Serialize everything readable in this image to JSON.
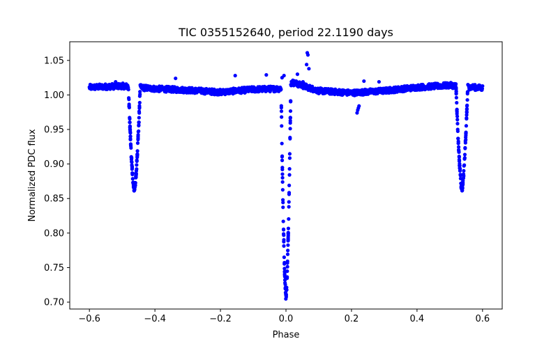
{
  "chart_data": {
    "type": "scatter",
    "title": "TIC 0355152640, period 22.1190 days",
    "xlabel": "Phase",
    "ylabel": "Normalized PDC flux",
    "xlim": [
      -0.66,
      0.66
    ],
    "ylim": [
      0.69,
      1.077
    ],
    "xticks": [
      -0.6,
      -0.4,
      -0.2,
      0.0,
      0.2,
      0.4,
      0.6
    ],
    "xtick_labels": [
      "−0.6",
      "−0.4",
      "−0.2",
      "0.0",
      "0.2",
      "0.4",
      "0.6"
    ],
    "yticks": [
      0.7,
      0.75,
      0.8,
      0.85,
      0.9,
      0.95,
      1.0,
      1.05
    ],
    "ytick_labels": [
      "0.70",
      "0.75",
      "0.80",
      "0.85",
      "0.90",
      "0.95",
      "1.00",
      "1.05"
    ],
    "marker_color": "#0000ff",
    "series": [
      {
        "name": "flux",
        "baseline": [
          [
            -0.6,
            1.011
          ],
          [
            -0.5,
            1.013
          ],
          [
            -0.4,
            1.009
          ],
          [
            -0.3,
            1.007
          ],
          [
            -0.2,
            1.004
          ],
          [
            -0.1,
            1.008
          ],
          [
            -0.02,
            1.009
          ],
          [
            0.02,
            1.018
          ],
          [
            0.1,
            1.006
          ],
          [
            0.2,
            1.003
          ],
          [
            0.3,
            1.006
          ],
          [
            0.4,
            1.011
          ],
          [
            0.5,
            1.014
          ],
          [
            0.6,
            1.01
          ]
        ],
        "eclipses": [
          {
            "center": -0.463,
            "half_width": 0.018,
            "depth": 0.148
          },
          {
            "center": 0.0,
            "half_width": 0.015,
            "depth": 0.305
          },
          {
            "center": 0.537,
            "half_width": 0.018,
            "depth": 0.148
          }
        ],
        "outliers": [
          {
            "x": -0.337,
            "y": 1.024
          },
          {
            "x": -0.155,
            "y": 1.028
          },
          {
            "x": -0.06,
            "y": 1.029
          },
          {
            "x": -0.012,
            "y": 1.025
          },
          {
            "x": -0.006,
            "y": 1.028
          },
          {
            "x": 0.035,
            "y": 1.03
          },
          {
            "x": 0.065,
            "y": 1.061
          },
          {
            "x": 0.067,
            "y": 1.058
          },
          {
            "x": 0.063,
            "y": 1.044
          },
          {
            "x": 0.07,
            "y": 1.038
          },
          {
            "x": 0.052,
            "y": 1.019
          },
          {
            "x": 0.238,
            "y": 1.02
          },
          {
            "x": 0.284,
            "y": 1.019
          },
          {
            "x": -0.52,
            "y": 1.019
          },
          {
            "x": 0.217,
            "y": 0.974
          },
          {
            "x": 0.219,
            "y": 0.978
          },
          {
            "x": 0.221,
            "y": 0.981
          },
          {
            "x": 0.223,
            "y": 0.984
          }
        ]
      }
    ]
  }
}
